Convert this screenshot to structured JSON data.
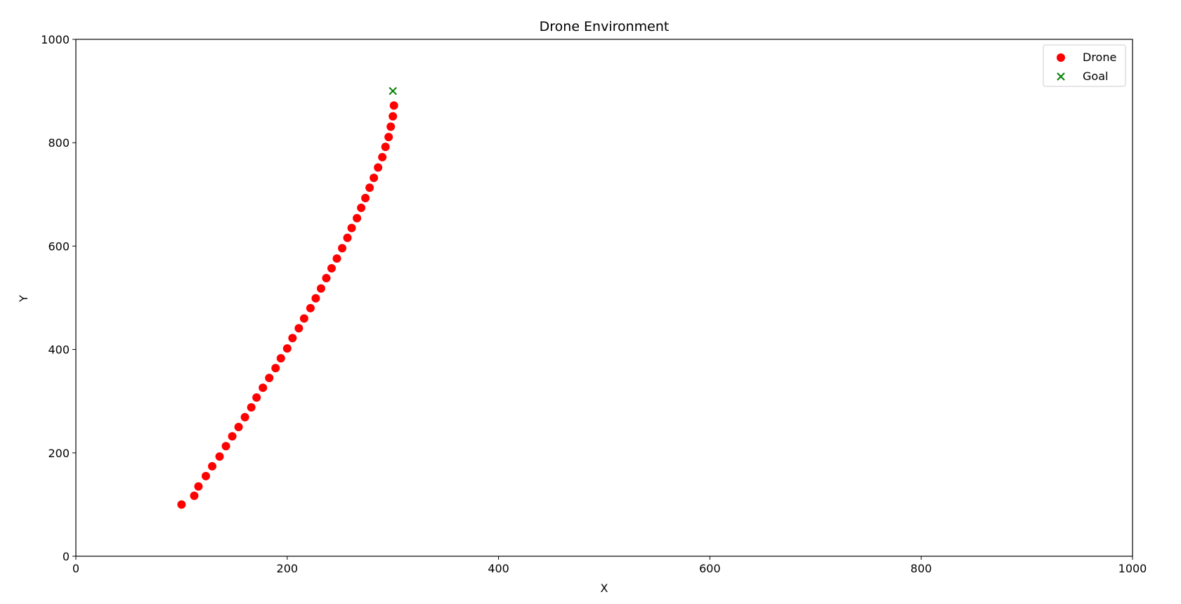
{
  "chart_data": {
    "type": "scatter",
    "title": "Drone Environment",
    "xlabel": "X",
    "ylabel": "Y",
    "xlim": [
      0,
      1000
    ],
    "ylim": [
      0,
      1000
    ],
    "xticks": [
      0,
      200,
      400,
      600,
      800,
      1000
    ],
    "yticks": [
      0,
      200,
      400,
      600,
      800,
      1000
    ],
    "grid": false,
    "legend_position": "upper right",
    "series": [
      {
        "name": "Drone",
        "marker": "circle",
        "color": "#ff0000",
        "points": [
          [
            100,
            100
          ],
          [
            112,
            117
          ],
          [
            116,
            135
          ],
          [
            123,
            155
          ],
          [
            129,
            174
          ],
          [
            136,
            193
          ],
          [
            142,
            213
          ],
          [
            148,
            232
          ],
          [
            154,
            250
          ],
          [
            160,
            269
          ],
          [
            166,
            288
          ],
          [
            171,
            307
          ],
          [
            177,
            326
          ],
          [
            183,
            345
          ],
          [
            189,
            364
          ],
          [
            194,
            383
          ],
          [
            200,
            402
          ],
          [
            205,
            422
          ],
          [
            211,
            441
          ],
          [
            216,
            460
          ],
          [
            222,
            480
          ],
          [
            227,
            499
          ],
          [
            232,
            518
          ],
          [
            237,
            538
          ],
          [
            242,
            557
          ],
          [
            247,
            576
          ],
          [
            252,
            596
          ],
          [
            257,
            616
          ],
          [
            261,
            635
          ],
          [
            266,
            654
          ],
          [
            270,
            674
          ],
          [
            274,
            693
          ],
          [
            278,
            713
          ],
          [
            282,
            732
          ],
          [
            286,
            752
          ],
          [
            290,
            772
          ],
          [
            293,
            792
          ],
          [
            296,
            811
          ],
          [
            298,
            831
          ],
          [
            300,
            851
          ],
          [
            301,
            872
          ]
        ]
      },
      {
        "name": "Goal",
        "marker": "x",
        "color": "#008000",
        "points": [
          [
            300,
            900
          ]
        ]
      }
    ]
  }
}
